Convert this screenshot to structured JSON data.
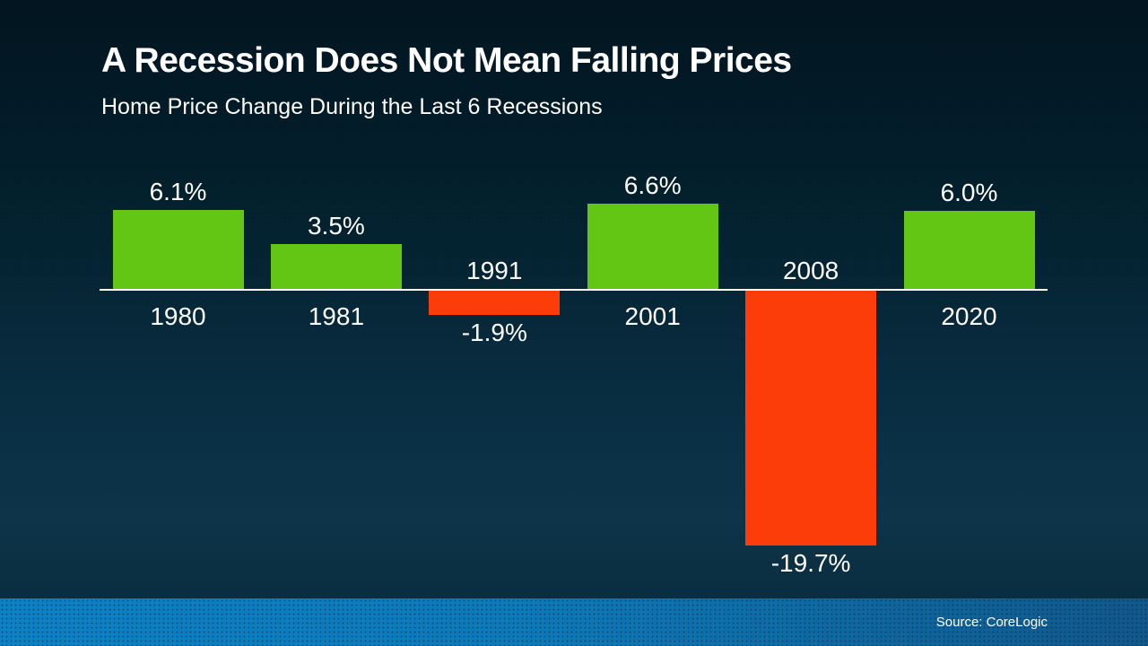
{
  "slide": {
    "title": "A Recession Does Not Mean Falling Prices",
    "subtitle": "Home Price Change During the Last 6 Recessions",
    "source": "Source: CoreLogic"
  },
  "colors": {
    "positive_bar": "#64c614",
    "negative_bar": "#fc3d0a",
    "axis_line": "#ffffff",
    "text": "#ffffff",
    "background_top": "#021520",
    "background_bottom": "#0d3449",
    "footer_gradient_left": "#0c81c4",
    "footer_gradient_right": "#11578a"
  },
  "chart_data": {
    "type": "bar",
    "title": "A Recession Does Not Mean Falling Prices",
    "subtitle": "Home Price Change During the Last 6 Recessions",
    "categories": [
      "1980",
      "1981",
      "1991",
      "2001",
      "2008",
      "2020"
    ],
    "values": [
      6.1,
      3.5,
      -1.9,
      6.6,
      -19.7,
      6.0
    ],
    "data_labels": [
      "6.1%",
      "3.5%",
      "-1.9%",
      "6.6%",
      "-19.7%",
      "6.0%"
    ],
    "xlabel": "",
    "ylabel": "",
    "ylim": [
      -22,
      8
    ],
    "grid": false,
    "legend": null,
    "positive_color": "#64c614",
    "negative_color": "#fc3d0a",
    "source": "Source: CoreLogic"
  }
}
